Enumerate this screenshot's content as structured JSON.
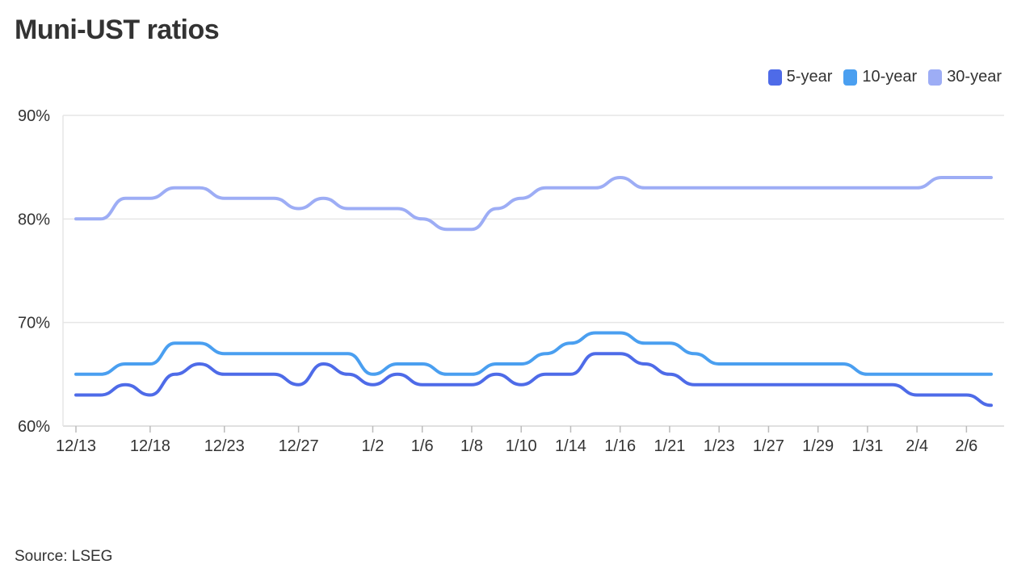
{
  "chart_data": {
    "type": "line",
    "title": "Muni-UST ratios",
    "source": "Source: LSEG",
    "ylim": [
      60,
      90
    ],
    "y_ticks": [
      "90%",
      "80%",
      "70%",
      "60%"
    ],
    "y_tick_values": [
      90,
      80,
      70,
      60
    ],
    "grid": true,
    "legend_position": "top-right",
    "x": [
      "12/13",
      "12/16",
      "12/17",
      "12/18",
      "12/19",
      "12/20",
      "12/23",
      "12/24",
      "12/26",
      "12/27",
      "12/30",
      "12/31",
      "1/2",
      "1/3",
      "1/6",
      "1/7",
      "1/8",
      "1/9",
      "1/10",
      "1/13",
      "1/14",
      "1/15",
      "1/16",
      "1/17",
      "1/21",
      "1/22",
      "1/23",
      "1/24",
      "1/27",
      "1/28",
      "1/29",
      "1/30",
      "1/31",
      "2/3",
      "2/4",
      "2/5",
      "2/6",
      "2/7"
    ],
    "x_tick_labels": [
      "12/13",
      "12/18",
      "12/23",
      "12/27",
      "1/2",
      "1/6",
      "1/8",
      "1/10",
      "1/14",
      "1/16",
      "1/21",
      "1/23",
      "1/27",
      "1/29",
      "1/31",
      "2/4",
      "2/6"
    ],
    "x_tick_indices": [
      0,
      3,
      6,
      9,
      12,
      14,
      16,
      18,
      20,
      22,
      24,
      26,
      28,
      30,
      32,
      34,
      36
    ],
    "series": [
      {
        "name": "5-year",
        "color": "#4e6be8",
        "values": [
          63,
          63,
          64,
          63,
          65,
          66,
          65,
          65,
          65,
          64,
          66,
          65,
          64,
          65,
          64,
          64,
          64,
          65,
          64,
          65,
          65,
          67,
          67,
          66,
          65,
          64,
          64,
          64,
          64,
          64,
          64,
          64,
          64,
          64,
          63,
          63,
          63,
          62
        ]
      },
      {
        "name": "10-year",
        "color": "#4a9ff0",
        "values": [
          65,
          65,
          66,
          66,
          68,
          68,
          67,
          67,
          67,
          67,
          67,
          67,
          65,
          66,
          66,
          65,
          65,
          66,
          66,
          67,
          68,
          69,
          69,
          68,
          68,
          67,
          66,
          66,
          66,
          66,
          66,
          66,
          65,
          65,
          65,
          65,
          65,
          65
        ]
      },
      {
        "name": "30-year",
        "color": "#9dadf5",
        "values": [
          80,
          80,
          82,
          82,
          83,
          83,
          82,
          82,
          82,
          81,
          82,
          81,
          81,
          81,
          80,
          79,
          79,
          81,
          82,
          83,
          83,
          83,
          84,
          83,
          83,
          83,
          83,
          83,
          83,
          83,
          83,
          83,
          83,
          83,
          83,
          84,
          84,
          84
        ]
      }
    ]
  }
}
